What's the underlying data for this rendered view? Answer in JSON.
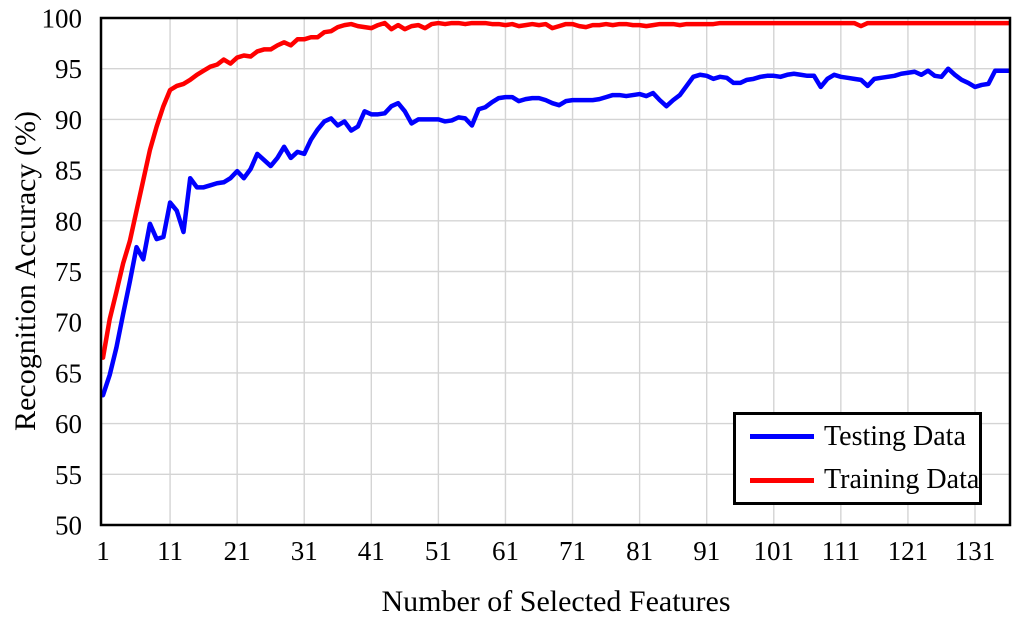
{
  "figure": {
    "background": "#ffffff",
    "border_color": "#000000",
    "gridline_color": "#d4d4d4"
  },
  "chart_data": {
    "type": "line",
    "title": "",
    "xlabel": "Number of Selected Features",
    "ylabel": "Recognition Accuracy (%)",
    "xlim": [
      1,
      136
    ],
    "ylim": [
      50,
      100
    ],
    "x_ticks": [
      1,
      11,
      21,
      31,
      41,
      51,
      61,
      71,
      81,
      91,
      101,
      111,
      121,
      131
    ],
    "y_ticks": [
      50,
      55,
      60,
      65,
      70,
      75,
      80,
      85,
      90,
      95,
      100
    ],
    "grid": true,
    "legend_position": "bottom-right",
    "x_start": 1,
    "x_step": 1,
    "series": [
      {
        "name": "Testing Data",
        "color": "#0000ff",
        "values": [
          62.8,
          64.8,
          67.5,
          70.8,
          74.0,
          77.4,
          76.2,
          79.7,
          78.2,
          78.4,
          81.8,
          81.0,
          78.9,
          84.2,
          83.3,
          83.3,
          83.5,
          83.7,
          83.8,
          84.2,
          84.9,
          84.2,
          85.1,
          86.6,
          86.0,
          85.4,
          86.2,
          87.3,
          86.2,
          86.8,
          86.6,
          88.0,
          89.0,
          89.8,
          90.1,
          89.4,
          89.8,
          88.9,
          89.3,
          90.8,
          90.5,
          90.5,
          90.6,
          91.3,
          91.6,
          90.8,
          89.6,
          90.0,
          90.0,
          90.0,
          90.0,
          89.8,
          89.9,
          90.2,
          90.1,
          89.4,
          91.0,
          91.2,
          91.7,
          92.1,
          92.2,
          92.2,
          91.8,
          92.0,
          92.1,
          92.1,
          91.9,
          91.6,
          91.4,
          91.8,
          91.9,
          91.9,
          91.9,
          91.9,
          92.0,
          92.2,
          92.4,
          92.4,
          92.3,
          92.4,
          92.5,
          92.3,
          92.6,
          91.9,
          91.3,
          91.9,
          92.4,
          93.3,
          94.2,
          94.4,
          94.3,
          94.0,
          94.2,
          94.1,
          93.6,
          93.6,
          93.9,
          94.0,
          94.2,
          94.3,
          94.3,
          94.2,
          94.4,
          94.5,
          94.4,
          94.3,
          94.3,
          93.2,
          94.0,
          94.4,
          94.2,
          94.1,
          94.0,
          93.9,
          93.3,
          94.0,
          94.1,
          94.2,
          94.3,
          94.5,
          94.6,
          94.7,
          94.4,
          94.8,
          94.3,
          94.2,
          95.0,
          94.4,
          93.9,
          93.6,
          93.2,
          93.4,
          93.5,
          94.8,
          94.8,
          94.8
        ]
      },
      {
        "name": "Training Data",
        "color": "#ff0000",
        "values": [
          66.5,
          70.3,
          73.0,
          75.8,
          78.0,
          81.0,
          84.0,
          87.0,
          89.3,
          91.3,
          92.9,
          93.3,
          93.5,
          93.9,
          94.4,
          94.8,
          95.2,
          95.4,
          95.9,
          95.5,
          96.1,
          96.3,
          96.2,
          96.7,
          96.9,
          96.9,
          97.3,
          97.6,
          97.3,
          97.9,
          97.9,
          98.1,
          98.1,
          98.6,
          98.7,
          99.1,
          99.3,
          99.4,
          99.2,
          99.1,
          99.0,
          99.3,
          99.5,
          98.9,
          99.3,
          98.9,
          99.2,
          99.3,
          99.0,
          99.4,
          99.5,
          99.4,
          99.5,
          99.5,
          99.4,
          99.5,
          99.5,
          99.5,
          99.4,
          99.4,
          99.3,
          99.4,
          99.2,
          99.3,
          99.4,
          99.3,
          99.4,
          99.0,
          99.2,
          99.4,
          99.4,
          99.2,
          99.1,
          99.3,
          99.3,
          99.4,
          99.3,
          99.4,
          99.4,
          99.3,
          99.3,
          99.2,
          99.3,
          99.4,
          99.4,
          99.4,
          99.3,
          99.4,
          99.4,
          99.4,
          99.4,
          99.4,
          99.5,
          99.5,
          99.5,
          99.5,
          99.5,
          99.5,
          99.5,
          99.5,
          99.5,
          99.5,
          99.5,
          99.5,
          99.5,
          99.5,
          99.5,
          99.5,
          99.5,
          99.5,
          99.5,
          99.5,
          99.5,
          99.2,
          99.5,
          99.5,
          99.5,
          99.5,
          99.5,
          99.5,
          99.5,
          99.5,
          99.5,
          99.5,
          99.5,
          99.5,
          99.5,
          99.5,
          99.5,
          99.5,
          99.5,
          99.5,
          99.5,
          99.5,
          99.5,
          99.5
        ]
      }
    ]
  },
  "legend": {
    "items": [
      {
        "label": "Testing Data",
        "color": "#0000ff"
      },
      {
        "label": "Training Data",
        "color": "#ff0000"
      }
    ]
  }
}
